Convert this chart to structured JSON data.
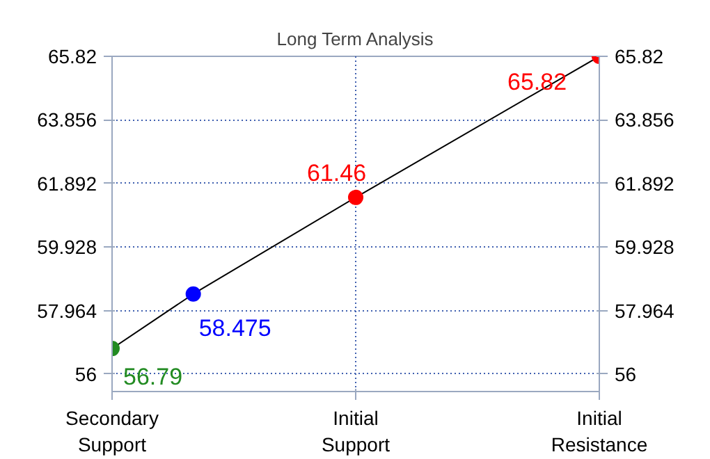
{
  "chart_data": {
    "type": "line",
    "title": "Long Term Analysis",
    "categories": [
      "Secondary\nSupport",
      null,
      null,
      null,
      null,
      null,
      "Initial\nSupport",
      null,
      null,
      null,
      null,
      null,
      "Initial\nResistance"
    ],
    "series": [
      {
        "color": "#000000",
        "colors": [
          "#228b22",
          null,
          "#0000ff",
          null,
          null,
          null,
          "#ff0000",
          null,
          null,
          null,
          null,
          null,
          "#ff0000"
        ],
        "values": [
          56.79,
          null,
          58.475,
          null,
          null,
          null,
          61.46,
          null,
          null,
          null,
          null,
          null,
          65.82
        ]
      }
    ],
    "data_labels": true,
    "marker": "circle",
    "ylim": [
      55.46,
      65.82
    ],
    "yticks": [
      56,
      57.964,
      59.928,
      61.892,
      63.856,
      65.82
    ],
    "y2lim": [
      55.46,
      65.82
    ],
    "y2ticks": [
      56,
      57.964,
      59.928,
      61.892,
      63.856,
      65.82
    ],
    "grid": true
  }
}
